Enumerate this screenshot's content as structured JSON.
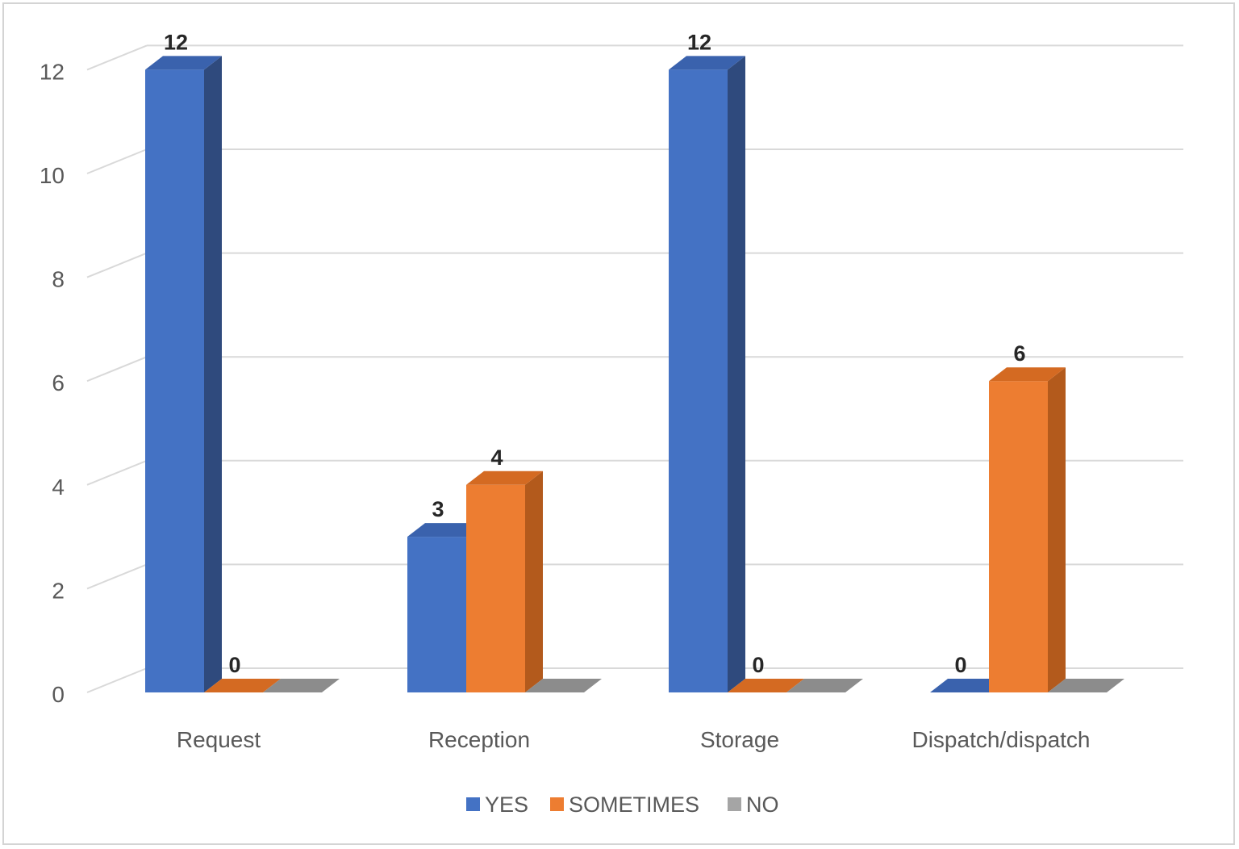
{
  "chart_data": {
    "type": "bar",
    "style": "3d-clustered-column",
    "categories": [
      "Request",
      "Reception",
      "Storage",
      "Dispatch/dispatch"
    ],
    "series": [
      {
        "name": "YES",
        "values": [
          12,
          3,
          12,
          0
        ],
        "color": "#4472c4",
        "side_color": "#2f4a7d",
        "top_color": "#3a62ad"
      },
      {
        "name": "SOMETIMES",
        "values": [
          0,
          4,
          0,
          6
        ],
        "color": "#ed7d31",
        "side_color": "#b35a1c",
        "top_color": "#d46a22"
      },
      {
        "name": "NO",
        "values": [
          0,
          0,
          0,
          0
        ],
        "color": "#a5a5a5",
        "side_color": "#7a7a7a",
        "top_color": "#8c8c8c"
      }
    ],
    "data_labels": [
      {
        "series": "YES",
        "category": "Request",
        "text": "12"
      },
      {
        "series": "SOMETIMES",
        "category": "Request",
        "text": "0"
      },
      {
        "series": "YES",
        "category": "Reception",
        "text": "3"
      },
      {
        "series": "SOMETIMES",
        "category": "Reception",
        "text": "4"
      },
      {
        "series": "YES",
        "category": "Storage",
        "text": "12"
      },
      {
        "series": "SOMETIMES",
        "category": "Storage",
        "text": "0"
      },
      {
        "series": "YES",
        "category": "Dispatch/dispatch",
        "text": "0"
      },
      {
        "series": "SOMETIMES",
        "category": "Dispatch/dispatch",
        "text": "6"
      }
    ],
    "yticks": [
      "0",
      "2",
      "4",
      "6",
      "8",
      "10",
      "12"
    ],
    "ylim": [
      0,
      12
    ],
    "title": "",
    "xlabel": "",
    "ylabel": "",
    "grid": true,
    "legend_position": "bottom",
    "gridline_color": "#d9d9d9"
  }
}
